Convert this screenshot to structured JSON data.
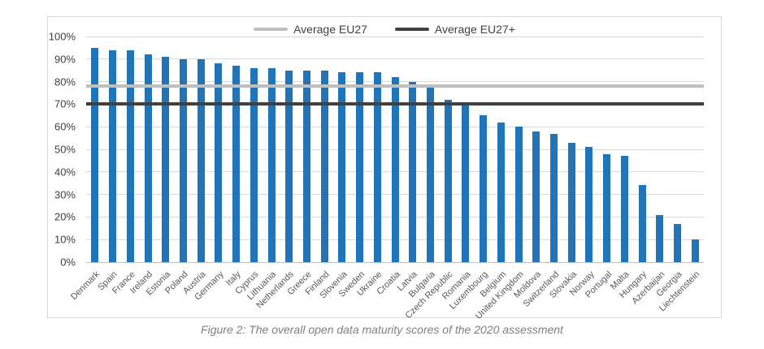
{
  "chart_data": {
    "type": "bar",
    "title": "",
    "categories": [
      "Denmark",
      "Spain",
      "France",
      "Ireland",
      "Estonia",
      "Poland",
      "Austria",
      "Germany",
      "Italy",
      "Cyprus",
      "Lithuania",
      "Netherlands",
      "Greece",
      "Finland",
      "Slovenia",
      "Sweden",
      "Ukraine",
      "Croatia",
      "Latvia",
      "Bulgaria",
      "Czech Republic",
      "Romania",
      "Luxembourg",
      "Belgium",
      "United Kingdom",
      "Moldova",
      "Switzerland",
      "Slovakia",
      "Norway",
      "Portugal",
      "Malta",
      "Hungary",
      "Azerbaijan",
      "Georgia",
      "Liechtenstein"
    ],
    "values": [
      95,
      94,
      94,
      92,
      91,
      90,
      90,
      88,
      87,
      86,
      86,
      85,
      85,
      85,
      84,
      84,
      84,
      82,
      80,
      78,
      72,
      70,
      65,
      62,
      60,
      58,
      57,
      53,
      51,
      48,
      47,
      34,
      21,
      17,
      10
    ],
    "value_unit": "%",
    "bar_color": "#2074b7",
    "y_tick_labels": [
      "100%",
      "90%",
      "80%",
      "70%",
      "60%",
      "50%",
      "40%",
      "30%",
      "20%",
      "10%",
      "0%"
    ],
    "ylim": [
      0,
      100
    ],
    "grid": true,
    "legend_position": "top",
    "reference_lines": [
      {
        "label": "Average EU27",
        "value": 78,
        "color": "#bfbfbf"
      },
      {
        "label": "Average EU27+",
        "value": 70,
        "color": "#404040"
      }
    ]
  },
  "caption": "Figure 2: The overall open data maturity scores of the 2020 assessment",
  "colors": {
    "gridline": "#d9d9d9",
    "axis_line": "#bfbfbf",
    "panel_border": "#d9d9d9",
    "tick_text": "#404040",
    "category_text": "#595959",
    "caption_text": "#7f7f7f"
  }
}
